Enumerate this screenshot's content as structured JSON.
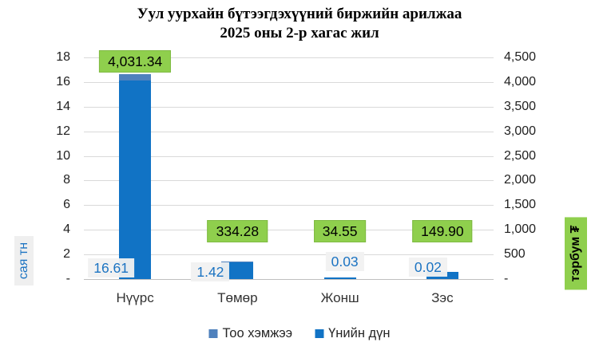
{
  "chart_data": {
    "type": "bar",
    "title": "Уул уурхайн бүтээгдэхүүний биржийн арилжаа",
    "subtitle": "2025 оны 2-р хагас жил",
    "categories": [
      "Нүүрс",
      "Төмөр",
      "Жонш",
      "Зэс"
    ],
    "series": [
      {
        "name": "Тоо хэмжээ",
        "axis": "left",
        "color": "#4F81BD",
        "values": [
          16.61,
          1.42,
          0.03,
          0.02
        ],
        "labels": [
          "16.61",
          "1.42",
          "0.03",
          "0.02"
        ]
      },
      {
        "name": "Үнийн дүн",
        "axis": "right",
        "color": "#1173C5",
        "values": [
          4031.34,
          334.28,
          34.55,
          149.9
        ],
        "labels": [
          "4,031.34",
          "334.28",
          "34.55",
          "149.90"
        ]
      }
    ],
    "left_axis": {
      "label": "сая тн",
      "min": 0,
      "max": 18,
      "step": 2,
      "ticks": [
        "18",
        "16",
        "14",
        "12",
        "10",
        "8",
        "6",
        "4",
        "2",
        "-"
      ]
    },
    "right_axis": {
      "label": "тэрбум ₮",
      "min": 0,
      "max": 4500,
      "step": 500,
      "ticks": [
        "4,500",
        "4,000",
        "3,500",
        "3,000",
        "2,500",
        "2,000",
        "1,500",
        "1,000",
        "500",
        "-"
      ]
    },
    "legend": [
      "Тоо хэмжээ",
      "Үнийн дүн"
    ],
    "legend_position": "bottom",
    "grid": true,
    "colors": {
      "quantity_bar": "#4F81BD",
      "value_bar": "#1173C5",
      "value_label_bg": "#8FCF4D",
      "quantity_label_text": "#1B73C2",
      "quantity_label_bg": "#F2F2F2",
      "left_unit_bg": "#EFEFEF",
      "right_unit_bg": "#8FCF4D",
      "gridline": "#D9D9D9"
    }
  }
}
